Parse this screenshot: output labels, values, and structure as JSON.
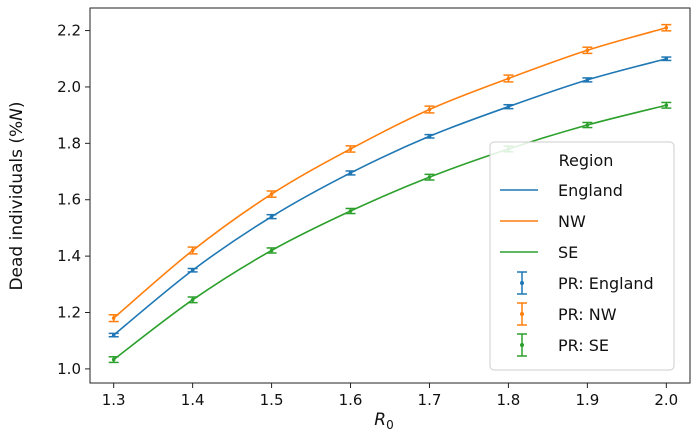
{
  "chart_data": {
    "type": "line",
    "xlabel": "R0",
    "ylabel": "Dead individuals (%N)",
    "xlim": [
      1.27,
      2.03
    ],
    "ylim": [
      0.95,
      2.28
    ],
    "x_ticks": [
      "1.3",
      "1.4",
      "1.5",
      "1.6",
      "1.7",
      "1.8",
      "1.9",
      "2.0"
    ],
    "y_ticks": [
      "1.0",
      "1.2",
      "1.4",
      "1.6",
      "1.8",
      "2.0",
      "2.2"
    ],
    "grid": false,
    "legend_placement": "lower-right",
    "legend_title": "Region",
    "x": [
      1.3,
      1.4,
      1.5,
      1.6,
      1.7,
      1.8,
      1.9,
      2.0
    ],
    "series": [
      {
        "name": "England",
        "color": "#1f77b4",
        "values": [
          1.12,
          1.35,
          1.54,
          1.695,
          1.825,
          1.93,
          2.025,
          2.1
        ],
        "errors": [
          0.006,
          0.006,
          0.007,
          0.007,
          0.006,
          0.007,
          0.007,
          0.006
        ]
      },
      {
        "name": "NW",
        "color": "#ff7f0e",
        "values": [
          1.18,
          1.42,
          1.62,
          1.78,
          1.92,
          2.03,
          2.13,
          2.21
        ],
        "errors": [
          0.012,
          0.012,
          0.011,
          0.011,
          0.012,
          0.012,
          0.011,
          0.011
        ]
      },
      {
        "name": "SE",
        "color": "#2ca02c",
        "values": [
          1.033,
          1.245,
          1.42,
          1.56,
          1.68,
          1.78,
          1.865,
          1.935
        ],
        "errors": [
          0.01,
          0.01,
          0.009,
          0.009,
          0.01,
          0.01,
          0.009,
          0.01
        ]
      }
    ],
    "legend_entries": [
      "England",
      "NW",
      "SE",
      "PR: England",
      "PR: NW",
      "PR: SE"
    ]
  }
}
